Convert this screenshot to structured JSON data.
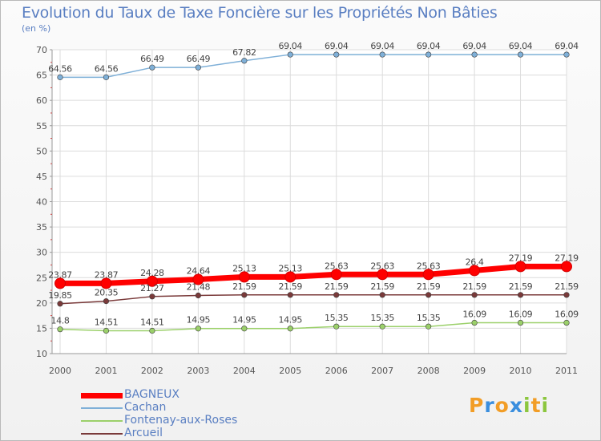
{
  "chart_data": {
    "type": "line",
    "title": "Evolution du Taux de Taxe Foncière sur les Propriétés Non Bâties",
    "unit_label": "(en %)",
    "x": [
      "2000",
      "2001",
      "2002",
      "2003",
      "2004",
      "2005",
      "2006",
      "2007",
      "2008",
      "2009",
      "2010",
      "2011"
    ],
    "ylim": [
      10,
      70
    ],
    "yticks": [
      10,
      15,
      20,
      25,
      30,
      35,
      40,
      45,
      50,
      55,
      60,
      65,
      70
    ],
    "grid": true,
    "legend_position": "bottom-left",
    "series": [
      {
        "name": "BAGNEUX",
        "color": "#ff0000",
        "values": [
          23.87,
          23.87,
          24.28,
          24.64,
          25.13,
          25.13,
          25.63,
          25.63,
          25.63,
          26.4,
          27.19,
          27.19
        ],
        "labels": [
          "23.87",
          "23.87",
          "24.28",
          "24.64",
          "25.13",
          "25.13",
          "25.63",
          "25.63",
          "25.63",
          "26.4",
          "27.19",
          "27.19"
        ]
      },
      {
        "name": "Cachan",
        "color": "#7fb0d8",
        "values": [
          64.56,
          64.56,
          66.49,
          66.49,
          67.82,
          69.04,
          69.04,
          69.04,
          69.04,
          69.04,
          69.04,
          69.04
        ],
        "labels": [
          "64.56",
          "64.56",
          "66.49",
          "66.49",
          "67.82",
          "69.04",
          "69.04",
          "69.04",
          "69.04",
          "69.04",
          "69.04",
          "69.04"
        ]
      },
      {
        "name": "Fontenay-aux-Roses",
        "color": "#9bd06a",
        "values": [
          14.8,
          14.51,
          14.51,
          14.95,
          14.95,
          14.95,
          15.35,
          15.35,
          15.35,
          16.09,
          16.09,
          16.09
        ],
        "labels": [
          "14.8",
          "14.51",
          "14.51",
          "14.95",
          "14.95",
          "14.95",
          "15.35",
          "15.35",
          "15.35",
          "16.09",
          "16.09",
          "16.09"
        ]
      },
      {
        "name": "Arcueil",
        "color": "#7a3a3a",
        "values": [
          19.85,
          20.35,
          21.27,
          21.48,
          21.59,
          21.59,
          21.59,
          21.59,
          21.59,
          21.59,
          21.59,
          21.59
        ],
        "labels": [
          "19.85",
          "20.35",
          "21.27",
          "21.48",
          "21.59",
          "21.59",
          "21.59",
          "21.59",
          "21.59",
          "21.59",
          "21.59",
          "21.59"
        ]
      }
    ]
  },
  "logo": {
    "letters": [
      "P",
      "r",
      "o",
      "x",
      "i",
      "t",
      "i"
    ],
    "colors": [
      "#f29d26",
      "#3a8ede",
      "#f29d26",
      "#3a8ede",
      "#8cc63e",
      "#f29d26",
      "#8cc63e"
    ]
  }
}
